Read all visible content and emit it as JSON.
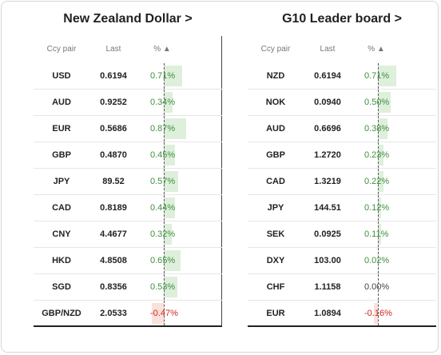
{
  "colors": {
    "positive_bar": "#deefdc",
    "negative_bar": "#fbe1dc",
    "positive_text": "#3e8e3e",
    "negative_text": "#cc2a1f"
  },
  "left": {
    "title": "New Zealand Dollar >",
    "headers": {
      "ccy": "Ccy pair",
      "last": "Last",
      "pct": "% ▲"
    },
    "rows": [
      {
        "ccy": "USD",
        "last": "0.6194",
        "pct": "0.71%",
        "value": 0.71
      },
      {
        "ccy": "AUD",
        "last": "0.9252",
        "pct": "0.34%",
        "value": 0.34
      },
      {
        "ccy": "EUR",
        "last": "0.5686",
        "pct": "0.87%",
        "value": 0.87
      },
      {
        "ccy": "GBP",
        "last": "0.4870",
        "pct": "0.45%",
        "value": 0.45
      },
      {
        "ccy": "JPY",
        "last": "89.52",
        "pct": "0.57%",
        "value": 0.57
      },
      {
        "ccy": "CAD",
        "last": "0.8189",
        "pct": "0.44%",
        "value": 0.44
      },
      {
        "ccy": "CNY",
        "last": "4.4677",
        "pct": "0.32%",
        "value": 0.32
      },
      {
        "ccy": "HKD",
        "last": "4.8508",
        "pct": "0.65%",
        "value": 0.65
      },
      {
        "ccy": "SGD",
        "last": "0.8356",
        "pct": "0.53%",
        "value": 0.53
      },
      {
        "ccy": "GBP/NZD",
        "last": "2.0533",
        "pct": "-0.47%",
        "value": -0.47
      }
    ]
  },
  "right": {
    "title": "G10 Leader board >",
    "headers": {
      "ccy": "Ccy pair",
      "last": "Last",
      "pct": "% ▲"
    },
    "rows": [
      {
        "ccy": "NZD",
        "last": "0.6194",
        "pct": "0.71%",
        "value": 0.71
      },
      {
        "ccy": "NOK",
        "last": "0.0940",
        "pct": "0.50%",
        "value": 0.5
      },
      {
        "ccy": "AUD",
        "last": "0.6696",
        "pct": "0.38%",
        "value": 0.38
      },
      {
        "ccy": "GBP",
        "last": "1.2720",
        "pct": "0.23%",
        "value": 0.23
      },
      {
        "ccy": "CAD",
        "last": "1.3219",
        "pct": "0.22%",
        "value": 0.22
      },
      {
        "ccy": "JPY",
        "last": "144.51",
        "pct": "0.12%",
        "value": 0.12
      },
      {
        "ccy": "SEK",
        "last": "0.0925",
        "pct": "0.11%",
        "value": 0.11
      },
      {
        "ccy": "DXY",
        "last": "103.00",
        "pct": "0.02%",
        "value": 0.02
      },
      {
        "ccy": "CHF",
        "last": "1.1158",
        "pct": "0.00%",
        "value": 0.0
      },
      {
        "ccy": "EUR",
        "last": "1.0894",
        "pct": "-0.16%",
        "value": -0.16
      }
    ]
  }
}
